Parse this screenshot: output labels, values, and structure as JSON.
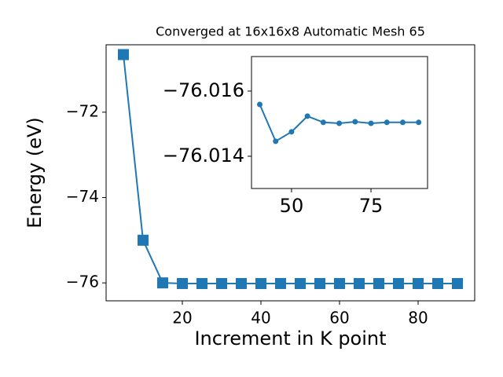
{
  "chart_data": [
    {
      "type": "line",
      "title": "Converged at 16x16x8 Automatic Mesh 65",
      "x_label": "Increment in K point",
      "y_label": "Energy (eV)",
      "x": [
        5,
        10,
        15,
        20,
        25,
        30,
        35,
        40,
        45,
        50,
        55,
        60,
        65,
        70,
        75,
        80,
        85,
        90
      ],
      "series": [
        {
          "color": "#1f77b4",
          "marker": "square",
          "values": [
            -70.65,
            -75.0,
            -76.0,
            -76.015,
            -76.015,
            -76.015,
            -76.015,
            -76.0156,
            -76.0145,
            -76.0148,
            -76.0152,
            -76.015,
            -76.015,
            -76.0151,
            -76.015,
            -76.015,
            -76.015,
            -76.015
          ]
        }
      ],
      "xlim": [
        0.6,
        94.4
      ],
      "ylim": [
        -76.42,
        -70.42
      ],
      "xticks": [
        20,
        40,
        60,
        80
      ],
      "yticks": [
        {
          "value": -72,
          "label": "−72"
        },
        {
          "value": -74,
          "label": "−74"
        },
        {
          "value": -76,
          "label": "−76"
        }
      ]
    },
    {
      "type": "line",
      "x": [
        40,
        45,
        50,
        55,
        60,
        65,
        70,
        75,
        80,
        85,
        90
      ],
      "series": [
        {
          "color": "#1f77b4",
          "marker": "circle",
          "values": [
            -76.01559,
            -76.01446,
            -76.01475,
            -76.01523,
            -76.01504,
            -76.01501,
            -76.01506,
            -76.01501,
            -76.01504,
            -76.01504,
            -76.01504
          ]
        }
      ],
      "xlim": [
        37.4,
        92.8
      ],
      "ylim": [
        -76.01301,
        -76.01706
      ],
      "xticks": [
        50,
        75
      ],
      "yticks": [
        {
          "value": -76.016,
          "label": "−76.016"
        },
        {
          "value": -76.014,
          "label": "−76.014"
        }
      ]
    }
  ]
}
